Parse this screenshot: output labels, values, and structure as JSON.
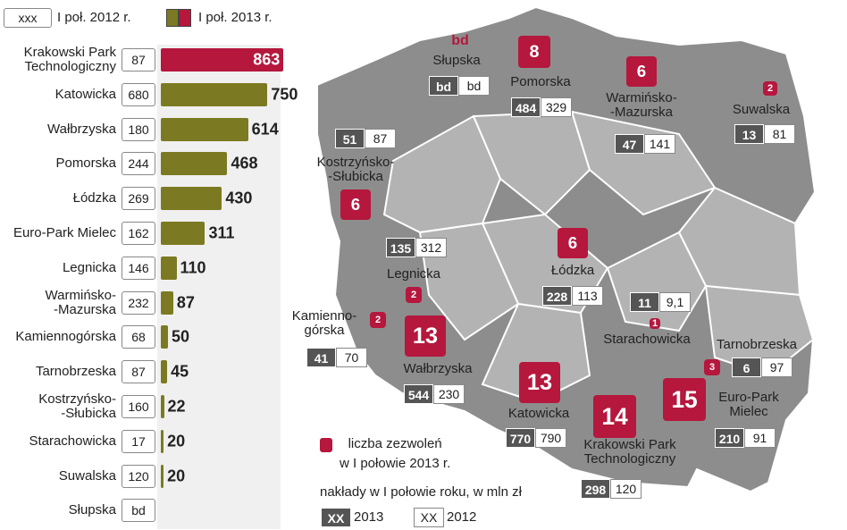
{
  "chart_data": {
    "type": "bar",
    "legend_sample": "xxx",
    "categories": [
      "Krakowski Park\nTechnologiczny",
      "Katowicka",
      "Wałbrzyska",
      "Pomorska",
      "Łódzka",
      "Euro-Park Mielec",
      "Legnicka",
      "Warmińsko-\n-Mazurska",
      "Kamiennogórska",
      "Tarnobrzeska",
      "Kostrzyńsko-\n-Słubicka",
      "Starachowicka",
      "Suwalska",
      "Słupska"
    ],
    "xlim": [
      0,
      880
    ],
    "series": [
      {
        "name": "I poł. 2013 r.",
        "color": "#7b7a22",
        "colors": [
          "#b5173d",
          "#7b7a22",
          "#7b7a22",
          "#7b7a22",
          "#7b7a22",
          "#7b7a22",
          "#7b7a22",
          "#7b7a22",
          "#7b7a22",
          "#7b7a22",
          "#7b7a22",
          "#7b7a22",
          "#7b7a22",
          "#7b7a22"
        ],
        "values": [
          863,
          750,
          614,
          468,
          430,
          311,
          110,
          87,
          50,
          45,
          22,
          20,
          20,
          null
        ]
      },
      {
        "name": "I poł. 2012 r.",
        "color": "#ffffff",
        "values": [
          87,
          680,
          180,
          244,
          269,
          162,
          146,
          232,
          68,
          87,
          160,
          17,
          120,
          null
        ],
        "value_labels": [
          "87",
          "680",
          "180",
          "244",
          "269",
          "162",
          "146",
          "232",
          "68",
          "87",
          "160",
          "17",
          "120",
          "bd"
        ]
      }
    ]
  },
  "map": {
    "zones": [
      {
        "name": "Słupska",
        "permits": "bd",
        "outlay_2013": "bd",
        "outlay_2012": "bd"
      },
      {
        "name": "Pomorska",
        "permits": 8,
        "outlay_2013": 484,
        "outlay_2012": 329
      },
      {
        "name": "Warmińsko-\n-Mazurska",
        "permits": 6,
        "outlay_2013": 47,
        "outlay_2012": 141
      },
      {
        "name": "Suwalska",
        "permits": 2,
        "outlay_2013": 13,
        "outlay_2012": 81
      },
      {
        "name": "Kostrzyńsko-\n-Słubicka",
        "permits": 6,
        "outlay_2013": 51,
        "outlay_2012": 87
      },
      {
        "name": "Legnicka",
        "permits": 2,
        "outlay_2013": 135,
        "outlay_2012": 312
      },
      {
        "name": "Łódzka",
        "permits": 6,
        "outlay_2013": 228,
        "outlay_2012": 113
      },
      {
        "name": "Kamienno-\ngórska",
        "permits": 2,
        "outlay_2013": 41,
        "outlay_2012": 70
      },
      {
        "name": "Wałbrzyska",
        "permits": 13,
        "outlay_2013": 544,
        "outlay_2012": 230
      },
      {
        "name": "Starachowicka",
        "permits": 1,
        "outlay_2013": 11,
        "outlay_2012": "9,1"
      },
      {
        "name": "Tarnobrzeska",
        "permits": 3,
        "outlay_2013": 6,
        "outlay_2012": 97
      },
      {
        "name": "Katowicka",
        "permits": 13,
        "outlay_2013": 770,
        "outlay_2012": 790
      },
      {
        "name": "Krakowski Park\nTechnologiczny",
        "permits": 14,
        "outlay_2013": 298,
        "outlay_2012": 120
      },
      {
        "name": "Euro-Park\nMielec",
        "permits": 15,
        "outlay_2013": 210,
        "outlay_2012": 91
      }
    ],
    "legend": {
      "permits": "liczba zezwoleń\nw I połowie 2013 r.",
      "outlays": "nakłady w I połowie roku, w mln zł",
      "items": [
        {
          "sample": "XX",
          "label": "2013"
        },
        {
          "sample": "XX",
          "label": "2012"
        }
      ]
    }
  }
}
